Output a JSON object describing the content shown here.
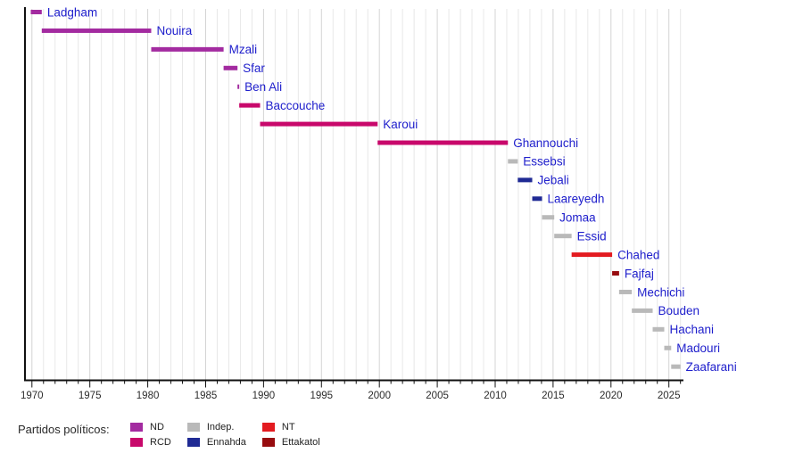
{
  "chart_data": {
    "type": "bar",
    "variant": "horizontal-timeline",
    "title": "",
    "x_axis": {
      "min": 1969.4,
      "max": 2026.2,
      "major_tick_years": [
        1970,
        1975,
        1980,
        1985,
        1990,
        1995,
        2000,
        2005,
        2010,
        2015,
        2020,
        2025
      ],
      "minor_tick_step_years": 1,
      "grid_first_year": 1970,
      "grid_last_year": 2026,
      "grid": "on"
    },
    "parties": [
      {
        "id": "ND",
        "label": "ND",
        "color": "#A32BA0"
      },
      {
        "id": "RCD",
        "label": "RCD",
        "color": "#C8086B"
      },
      {
        "id": "Indep.",
        "label": "Indep.",
        "color": "#B9B9B9"
      },
      {
        "id": "Ennahda",
        "label": "Ennahda",
        "color": "#1F2A94"
      },
      {
        "id": "NT",
        "label": "NT",
        "color": "#E31B20"
      },
      {
        "id": "Ettakatol",
        "label": "Ettakatol",
        "color": "#970C0F"
      }
    ],
    "bars": [
      {
        "name": "Ladgham",
        "party": "ND",
        "start": 1969.9,
        "end": 1970.85
      },
      {
        "name": "Nouira",
        "party": "ND",
        "start": 1970.85,
        "end": 1980.3
      },
      {
        "name": "Mzali",
        "party": "ND",
        "start": 1980.3,
        "end": 1986.55
      },
      {
        "name": "Sfar",
        "party": "ND",
        "start": 1986.55,
        "end": 1987.75
      },
      {
        "name": "Ben Ali",
        "party": "ND",
        "start": 1987.75,
        "end": 1987.9
      },
      {
        "name": "Baccouche",
        "party": "RCD",
        "start": 1987.9,
        "end": 1989.7
      },
      {
        "name": "Karoui",
        "party": "RCD",
        "start": 1989.7,
        "end": 1999.85
      },
      {
        "name": "Ghannouchi",
        "party": "RCD",
        "start": 1999.85,
        "end": 2011.1
      },
      {
        "name": "Essebsi",
        "party": "Indep.",
        "start": 2011.1,
        "end": 2011.95
      },
      {
        "name": "Jebali",
        "party": "Ennahda",
        "start": 2011.95,
        "end": 2013.2
      },
      {
        "name": "Laareyedh",
        "party": "Ennahda",
        "start": 2013.2,
        "end": 2014.05
      },
      {
        "name": "Jomaa",
        "party": "Indep.",
        "start": 2014.05,
        "end": 2015.1
      },
      {
        "name": "Essid",
        "party": "Indep.",
        "start": 2015.1,
        "end": 2016.6
      },
      {
        "name": "Chahed",
        "party": "NT",
        "start": 2016.6,
        "end": 2020.1
      },
      {
        "name": "Fajfaj",
        "party": "Ettakatol",
        "start": 2020.1,
        "end": 2020.7
      },
      {
        "name": "Mechichi",
        "party": "Indep.",
        "start": 2020.7,
        "end": 2021.8
      },
      {
        "name": "Bouden",
        "party": "Indep.",
        "start": 2021.8,
        "end": 2023.6
      },
      {
        "name": "Hachani",
        "party": "Indep.",
        "start": 2023.6,
        "end": 2024.6
      },
      {
        "name": "Madouri",
        "party": "Indep.",
        "start": 2024.6,
        "end": 2025.2
      },
      {
        "name": "Zaafarani",
        "party": "Indep.",
        "start": 2025.2,
        "end": 2026.0
      }
    ],
    "legend": {
      "title": "Partidos políticos:",
      "position": "bottom",
      "rows": 2,
      "item_order": [
        "ND",
        "RCD",
        "Indep.",
        "Ennahda",
        "NT",
        "Ettakatol"
      ]
    },
    "colors": {
      "bar_label_text": "#2020CC",
      "axis_line": "#111111",
      "tick_label_text": "#2B2B2B",
      "grid_minor": "#E8E8E8",
      "grid_major": "#D4D4D4"
    }
  }
}
